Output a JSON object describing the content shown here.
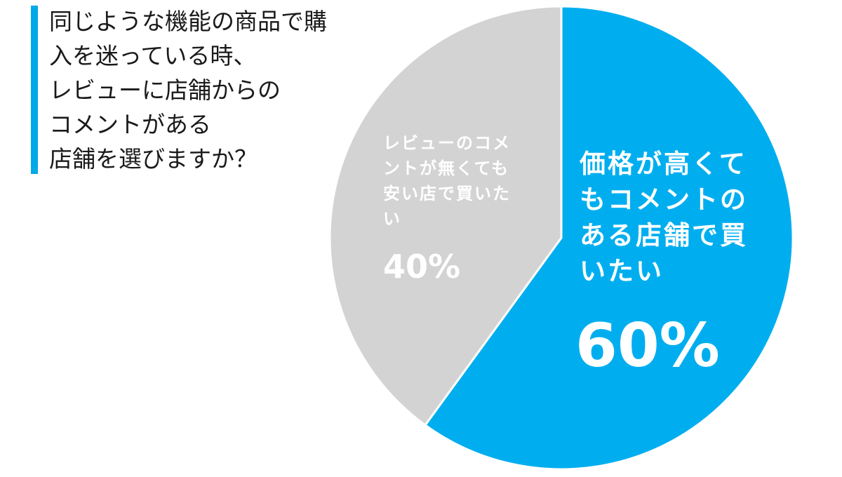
{
  "question": {
    "lines": [
      "同じような機能の商品で購",
      "入を迷っている時、",
      "レビューに店舗からの",
      "コメントがある",
      "店舗を選びますか？"
    ]
  },
  "colors": {
    "accent_bar": "#00a9e8",
    "slice_blue": "#00aeef",
    "slice_gray": "#d3d3d3",
    "separator": "#ffffff"
  },
  "chart_data": {
    "type": "pie",
    "slices": [
      {
        "label_lines": [
          "価格が高くて",
          "もコメントの",
          "ある店舗で買",
          "いたい"
        ],
        "value": 60,
        "value_label": "60%",
        "color": "#00aeef"
      },
      {
        "label_lines": [
          "レビューのコメ",
          "ントが無くても",
          "安い店で買いた",
          "い"
        ],
        "value": 40,
        "value_label": "40%",
        "color": "#d3d3d3"
      }
    ],
    "start_angle_deg": 0,
    "direction": "clockwise"
  }
}
